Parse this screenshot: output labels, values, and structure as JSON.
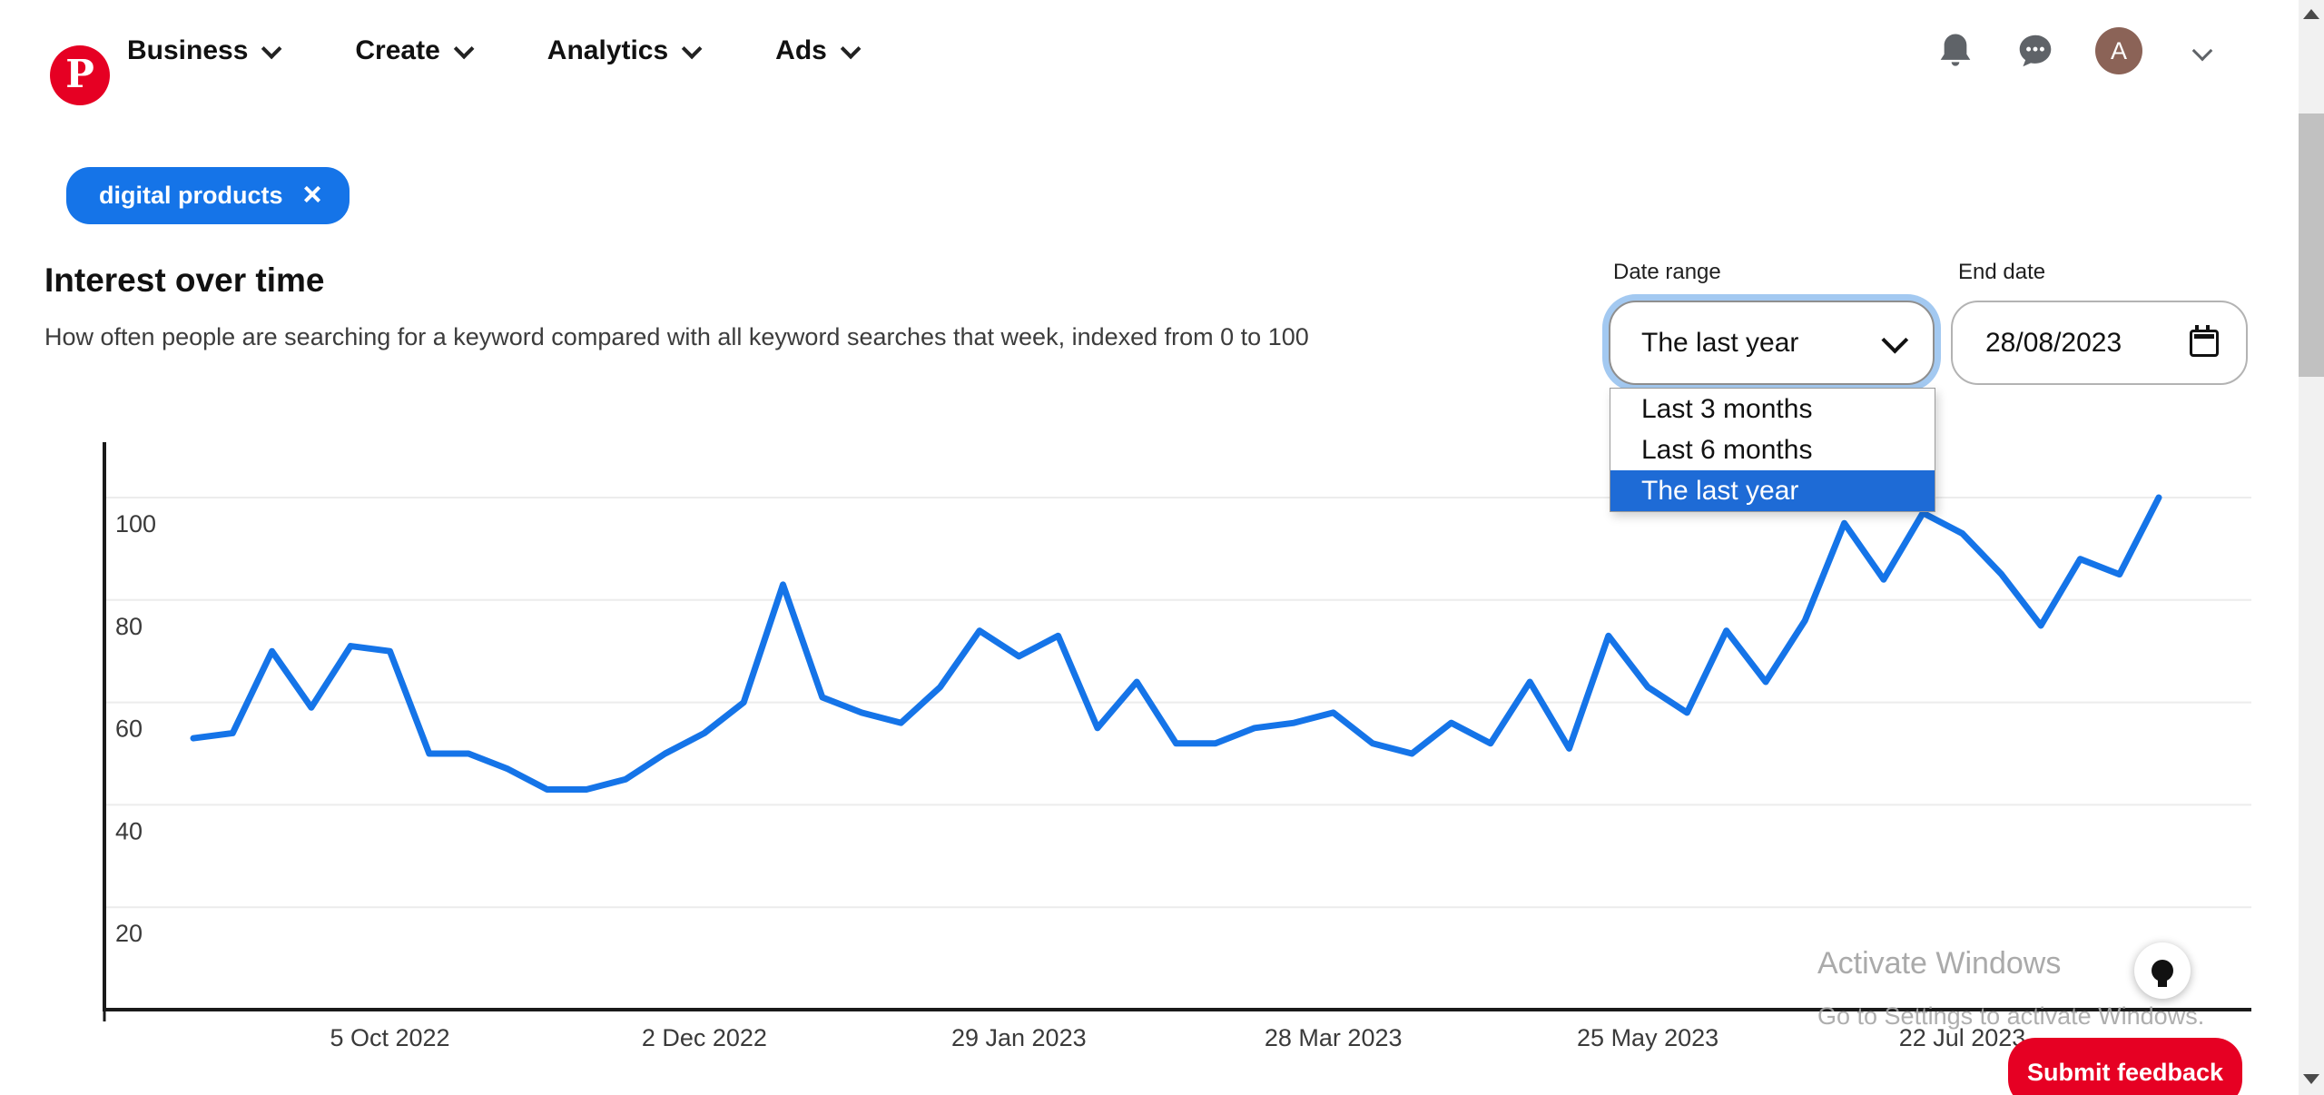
{
  "nav": {
    "logo_letter": "P",
    "items": [
      {
        "label": "Business"
      },
      {
        "label": "Create"
      },
      {
        "label": "Analytics"
      },
      {
        "label": "Ads"
      }
    ],
    "avatar_initial": "A"
  },
  "chip": {
    "label": "digital products",
    "close_glyph": "×"
  },
  "section": {
    "title": "Interest over time",
    "subtitle": "How often people are searching for a keyword compared with all keyword searches that week, indexed from 0 to 100"
  },
  "controls": {
    "date_range": {
      "label": "Date range",
      "value": "The last year",
      "options": [
        "Last 3 months",
        "Last 6 months",
        "The last year"
      ],
      "selected": "The last year"
    },
    "end_date": {
      "label": "End date",
      "value": "28/08/2023"
    }
  },
  "chart_data": {
    "type": "line",
    "title": "Interest over time",
    "x_unit": "week",
    "ylim": [
      0,
      100
    ],
    "grid": true,
    "y_ticks": [
      20,
      40,
      60,
      80,
      100
    ],
    "x_ticks": [
      {
        "label": "5 Oct 2022",
        "week_index": 5
      },
      {
        "label": "2 Dec 2022",
        "week_index": 13
      },
      {
        "label": "29 Jan 2023",
        "week_index": 21
      },
      {
        "label": "28 Mar 2023",
        "week_index": 29
      },
      {
        "label": "25 May 2023",
        "week_index": 37
      },
      {
        "label": "22 Jul 2023",
        "week_index": 45
      }
    ],
    "series": [
      {
        "name": "digital products",
        "color": "#1574e8",
        "values": [
          53,
          54,
          70,
          59,
          71,
          70,
          50,
          50,
          47,
          43,
          43,
          45,
          50,
          54,
          60,
          83,
          61,
          58,
          56,
          63,
          74,
          69,
          73,
          55,
          64,
          52,
          52,
          55,
          56,
          58,
          52,
          50,
          56,
          52,
          64,
          51,
          73,
          63,
          58,
          74,
          64,
          76,
          95,
          84,
          97,
          93,
          85,
          75,
          88,
          85,
          100
        ]
      }
    ]
  },
  "watermark": {
    "line1": "Activate Windows",
    "line2": "Go to Settings to activate Windows."
  },
  "feedback": {
    "label": "Submit feedback"
  },
  "colors": {
    "line_blue": "#1574e8",
    "chip_blue": "#1574e8",
    "highlight_blue": "#1e6bd6",
    "pinterest_red": "#e60023",
    "avatar_brown": "#8b6357",
    "gridline": "#ececec",
    "axis": "#1a1a1a"
  }
}
